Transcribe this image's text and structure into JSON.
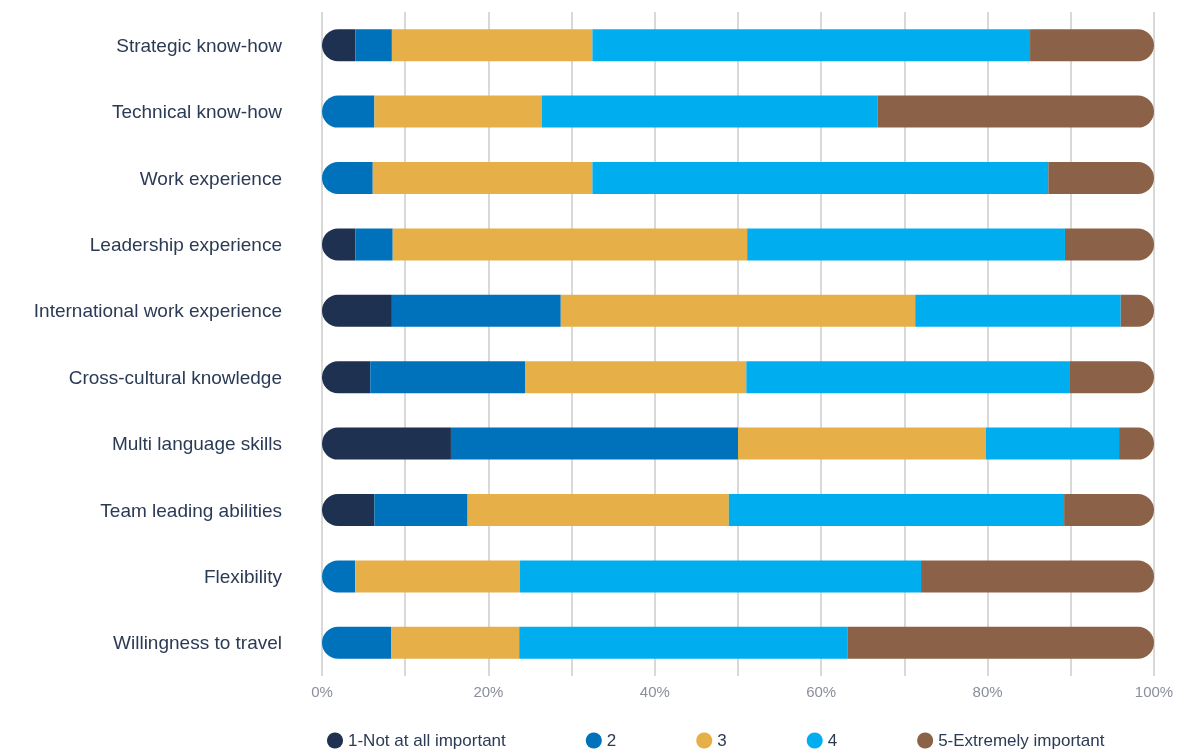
{
  "chart_data": {
    "type": "bar",
    "orientation": "horizontal",
    "stacked": true,
    "categories": [
      "Strategic know-how",
      "Technical know-how",
      "Work experience",
      "Leadership experience",
      "International work experience",
      "Cross-cultural knowledge",
      "Multi language skills",
      "Team leading abilities",
      "Flexibility",
      "Willingness to travel"
    ],
    "series": [
      {
        "name": "1-Not at all important",
        "color": "#1f3150",
        "values": [
          4.0,
          0,
          0,
          4.0,
          8.4,
          5.8,
          15.5,
          6.3,
          0,
          0
        ]
      },
      {
        "name": "2",
        "color": "#0072bc",
        "values": [
          4.4,
          6.3,
          6.1,
          4.5,
          20.3,
          18.6,
          34.5,
          11.2,
          4.0,
          8.3
        ]
      },
      {
        "name": "3",
        "color": "#e6af47",
        "values": [
          24.1,
          20.1,
          26.4,
          42.6,
          42.6,
          26.6,
          29.8,
          31.4,
          19.8,
          15.4
        ]
      },
      {
        "name": "4",
        "color": "#00aeef",
        "values": [
          52.6,
          40.4,
          54.8,
          38.2,
          24.7,
          38.9,
          16.0,
          40.3,
          48.2,
          39.5
        ]
      },
      {
        "name": "5-Extremely important",
        "color": "#8b6248",
        "values": [
          14.9,
          33.2,
          12.7,
          10.7,
          4.0,
          10.2,
          4.2,
          10.8,
          28.0,
          36.8
        ]
      }
    ],
    "xlim": [
      0,
      100
    ],
    "xticks": [
      {
        "value": 0,
        "label": "0%"
      },
      {
        "value": 10,
        "label": null
      },
      {
        "value": 20,
        "label": "20%"
      },
      {
        "value": 30,
        "label": null
      },
      {
        "value": 40,
        "label": "40%"
      },
      {
        "value": 50,
        "label": null
      },
      {
        "value": 60,
        "label": "60%"
      },
      {
        "value": 70,
        "label": null
      },
      {
        "value": 80,
        "label": "80%"
      },
      {
        "value": 90,
        "label": null
      },
      {
        "value": 100,
        "label": "100%"
      }
    ],
    "grid": "x",
    "legend": "bottom"
  }
}
